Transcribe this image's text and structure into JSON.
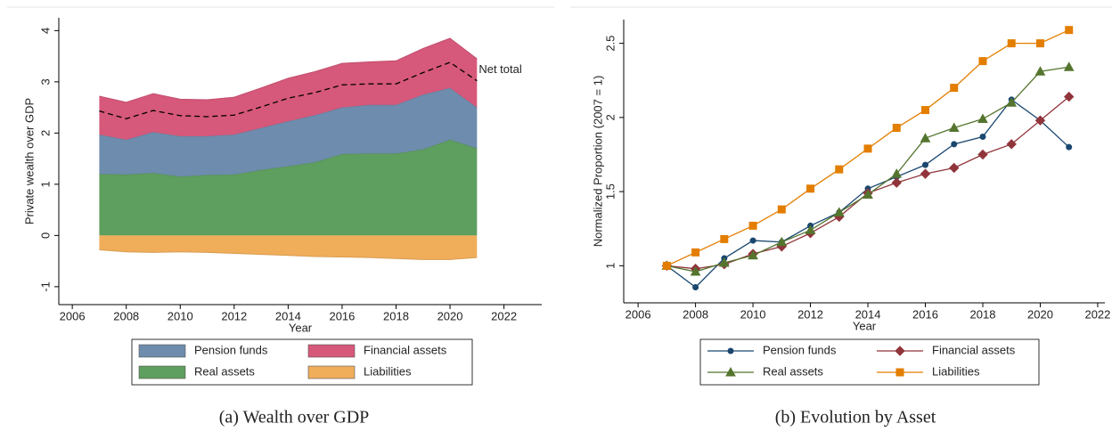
{
  "chart_data": [
    {
      "type": "area",
      "caption": "(a) Wealth over GDP",
      "x_label": "Year",
      "y_label": "Private wealth over GDP",
      "x": [
        2007,
        2008,
        2009,
        2010,
        2011,
        2012,
        2013,
        2014,
        2015,
        2016,
        2017,
        2018,
        2019,
        2020,
        2021
      ],
      "series": [
        {
          "name": "Pension funds",
          "color": "#6e8cad",
          "values": [
            0.77,
            0.68,
            0.8,
            0.79,
            0.76,
            0.78,
            0.82,
            0.88,
            0.92,
            0.91,
            0.95,
            0.95,
            1.07,
            1.01,
            0.8
          ]
        },
        {
          "name": "Financial assets",
          "color": "#d6587a",
          "values": [
            0.75,
            0.73,
            0.75,
            0.72,
            0.71,
            0.73,
            0.78,
            0.84,
            0.85,
            0.86,
            0.84,
            0.86,
            0.9,
            0.97,
            0.95
          ]
        },
        {
          "name": "Real assets",
          "color": "#5e9e5e",
          "values": [
            1.2,
            1.19,
            1.22,
            1.15,
            1.18,
            1.19,
            1.28,
            1.35,
            1.43,
            1.59,
            1.6,
            1.6,
            1.68,
            1.87,
            1.7
          ]
        },
        {
          "name": "Liabilities",
          "color": "#f0ad5a",
          "values": [
            -0.28,
            -0.32,
            -0.33,
            -0.32,
            -0.33,
            -0.35,
            -0.37,
            -0.39,
            -0.41,
            -0.42,
            -0.43,
            -0.45,
            -0.47,
            -0.47,
            -0.43
          ]
        }
      ],
      "line": {
        "name": "Net total",
        "color": "#000000",
        "dashed": true,
        "values": [
          2.43,
          2.28,
          2.44,
          2.34,
          2.32,
          2.35,
          2.51,
          2.68,
          2.79,
          2.94,
          2.96,
          2.96,
          3.18,
          3.38,
          3.02
        ]
      },
      "xlim": [
        2005.5,
        2023.4
      ],
      "xticks": [
        2006,
        2008,
        2010,
        2012,
        2014,
        2016,
        2018,
        2020,
        2022
      ],
      "ylim": [
        -1.35,
        4.25
      ],
      "yticks": [
        -1,
        0,
        1,
        2,
        3,
        4
      ]
    },
    {
      "type": "line",
      "caption": "(b) Evolution by Asset",
      "x_label": "Year",
      "y_label": "Normalized Proportion (2007 = 1)",
      "x": [
        2007,
        2008,
        2009,
        2010,
        2011,
        2012,
        2013,
        2014,
        2015,
        2016,
        2017,
        2018,
        2019,
        2020,
        2021
      ],
      "series": [
        {
          "name": "Pension funds",
          "color": "#1a476f",
          "marker": "circle",
          "values": [
            1.0,
            0.855,
            1.05,
            1.17,
            1.16,
            1.27,
            1.36,
            1.52,
            1.6,
            1.68,
            1.82,
            1.87,
            2.12,
            1.98,
            1.8
          ]
        },
        {
          "name": "Financial assets",
          "color": "#90353b",
          "marker": "diamond",
          "values": [
            1.0,
            0.98,
            1.01,
            1.08,
            1.13,
            1.22,
            1.33,
            1.49,
            1.56,
            1.62,
            1.66,
            1.75,
            1.82,
            1.98,
            2.14
          ]
        },
        {
          "name": "Real assets",
          "color": "#55752f",
          "marker": "triangle",
          "values": [
            1.0,
            0.96,
            1.02,
            1.07,
            1.16,
            1.24,
            1.36,
            1.48,
            1.62,
            1.86,
            1.93,
            1.99,
            2.1,
            2.31,
            2.34
          ]
        },
        {
          "name": "Liabilities",
          "color": "#e37e00",
          "marker": "square",
          "values": [
            1.0,
            1.09,
            1.18,
            1.27,
            1.38,
            1.52,
            1.65,
            1.79,
            1.93,
            2.05,
            2.2,
            2.38,
            2.5,
            2.5,
            2.59
          ]
        }
      ],
      "xlim": [
        2005.5,
        2022.25
      ],
      "xticks": [
        2006,
        2008,
        2010,
        2012,
        2014,
        2016,
        2018,
        2020,
        2022
      ],
      "ylim": [
        0.75,
        2.66
      ],
      "yticks": [
        1,
        1.5,
        2,
        2.5
      ]
    }
  ]
}
